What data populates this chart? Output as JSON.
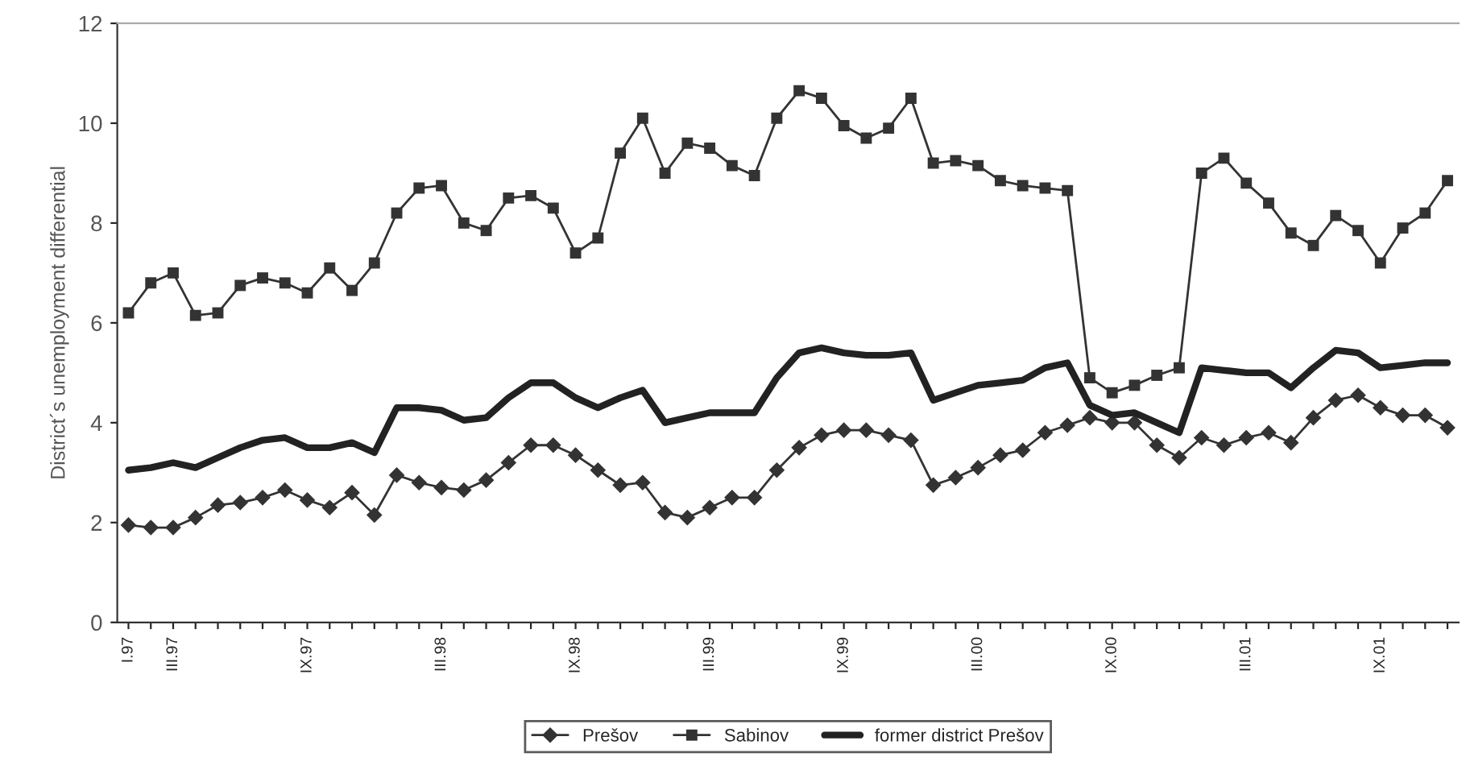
{
  "chart_data": {
    "type": "line",
    "ylabel": "District´s unemployment differential",
    "categories": [
      "I.97",
      null,
      "III.97",
      null,
      null,
      null,
      null,
      null,
      "IX.97",
      null,
      null,
      null,
      null,
      null,
      "III.98",
      null,
      null,
      null,
      null,
      null,
      "IX.98",
      null,
      null,
      null,
      null,
      null,
      "III.99",
      null,
      null,
      null,
      null,
      null,
      "IX.99",
      null,
      null,
      null,
      null,
      null,
      "III.00",
      null,
      null,
      null,
      null,
      null,
      "IX.00",
      null,
      null,
      null,
      null,
      null,
      "III.01",
      null,
      null,
      null,
      null,
      null,
      "IX.01",
      null,
      null,
      null
    ],
    "series": [
      {
        "name": "Prešov",
        "color": "#333333",
        "marker": "diamond",
        "values": [
          1.95,
          1.9,
          1.9,
          2.1,
          2.35,
          2.4,
          2.5,
          2.65,
          2.45,
          2.3,
          2.6,
          2.15,
          2.95,
          2.8,
          2.7,
          2.65,
          2.85,
          3.2,
          3.55,
          3.55,
          3.35,
          3.05,
          2.75,
          2.8,
          2.2,
          2.1,
          2.3,
          2.5,
          2.5,
          3.05,
          3.5,
          3.75,
          3.85,
          3.85,
          3.75,
          3.65,
          2.75,
          2.9,
          3.1,
          3.35,
          3.45,
          3.8,
          3.95,
          4.1,
          4.0,
          4.0,
          3.55,
          3.3,
          3.7,
          3.55,
          3.7,
          3.8,
          3.6,
          4.1,
          4.45,
          4.55,
          4.3,
          4.15,
          4.15,
          3.9
        ]
      },
      {
        "name": "Sabinov",
        "color": "#333333",
        "marker": "square",
        "values": [
          6.2,
          6.8,
          7.0,
          6.15,
          6.2,
          6.75,
          6.9,
          6.8,
          6.6,
          7.1,
          6.65,
          7.2,
          8.2,
          8.7,
          8.75,
          8.0,
          7.85,
          8.5,
          8.55,
          8.3,
          7.4,
          7.7,
          9.4,
          10.1,
          9.0,
          9.6,
          9.5,
          9.15,
          8.95,
          10.1,
          10.65,
          10.5,
          9.95,
          9.7,
          9.9,
          10.5,
          9.2,
          9.25,
          9.15,
          8.85,
          8.75,
          8.7,
          8.65,
          4.9,
          4.6,
          4.75,
          4.95,
          5.1,
          9.0,
          9.3,
          8.8,
          8.4,
          7.8,
          7.55,
          8.15,
          7.85,
          7.2,
          7.9,
          8.2,
          8.85
        ]
      },
      {
        "name": "former district Prešov",
        "color": "#222222",
        "marker": "none",
        "values": [
          3.05,
          3.1,
          3.2,
          3.1,
          3.3,
          3.5,
          3.65,
          3.7,
          3.5,
          3.5,
          3.6,
          3.4,
          4.3,
          4.3,
          4.25,
          4.05,
          4.1,
          4.5,
          4.8,
          4.8,
          4.5,
          4.3,
          4.5,
          4.65,
          4.0,
          4.1,
          4.2,
          4.2,
          4.2,
          4.9,
          5.4,
          5.5,
          5.4,
          5.35,
          5.35,
          5.4,
          4.45,
          4.6,
          4.75,
          4.8,
          4.85,
          5.1,
          5.2,
          4.35,
          4.15,
          4.2,
          4.0,
          3.8,
          5.1,
          5.05,
          5.0,
          5.0,
          4.7,
          5.1,
          5.45,
          5.4,
          5.1,
          5.15,
          5.2,
          5.2
        ]
      }
    ],
    "ylim": [
      0,
      12
    ],
    "yticks": [
      0,
      2,
      4,
      6,
      8,
      10,
      12
    ],
    "grid": false,
    "legend": "bottom"
  }
}
